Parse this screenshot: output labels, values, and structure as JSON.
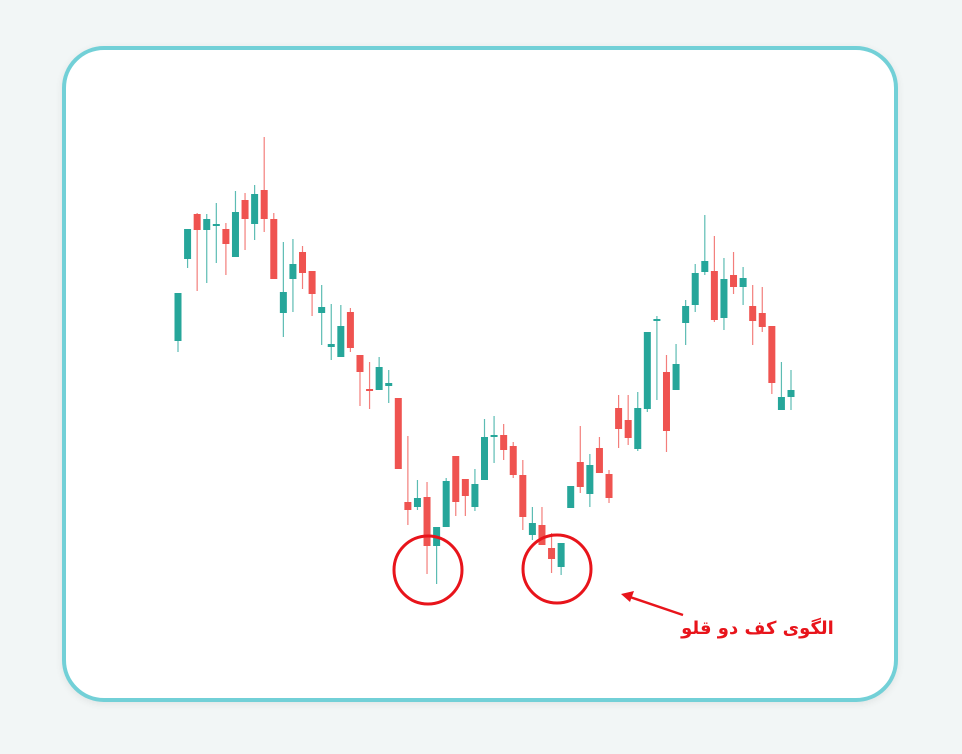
{
  "chart_data": {
    "type": "candlestick",
    "title": "",
    "xlabel": "",
    "ylabel": "",
    "axes_visible": false,
    "grid": false,
    "colors": {
      "up": "#26a69a",
      "down": "#ef5350",
      "annotation": "#e8141b",
      "frame": "#72d0d7"
    },
    "ylim": [
      0,
      48
    ],
    "fields": [
      "open",
      "high",
      "low",
      "close"
    ],
    "candles": [
      [
        25.9,
        30.7,
        24.8,
        30.7
      ],
      [
        34.1,
        37.1,
        33.2,
        37.1
      ],
      [
        38.6,
        38.7,
        30.9,
        37.0
      ],
      [
        37.0,
        38.6,
        31.7,
        38.1
      ],
      [
        37.5,
        39.7,
        33.7,
        37.6
      ],
      [
        37.1,
        37.7,
        32.5,
        35.6
      ],
      [
        34.3,
        40.9,
        34.3,
        38.8
      ],
      [
        40.0,
        40.7,
        35.0,
        38.1
      ],
      [
        37.6,
        41.5,
        36.0,
        40.6
      ],
      [
        41.0,
        46.3,
        36.8,
        38.1
      ],
      [
        38.1,
        38.7,
        32.1,
        32.1
      ],
      [
        28.7,
        35.8,
        26.3,
        30.8
      ],
      [
        32.1,
        36.1,
        28.8,
        33.6
      ],
      [
        34.8,
        35.4,
        31.1,
        32.7
      ],
      [
        32.9,
        32.9,
        28.4,
        30.6
      ],
      [
        28.7,
        31.5,
        25.5,
        29.3
      ],
      [
        25.3,
        29.6,
        24.0,
        25.6
      ],
      [
        24.3,
        29.5,
        24.3,
        27.4
      ],
      [
        28.8,
        29.2,
        24.8,
        25.2
      ],
      [
        24.5,
        24.5,
        19.4,
        22.8
      ],
      [
        21.1,
        23.8,
        19.1,
        21.0
      ],
      [
        21.0,
        24.3,
        21.0,
        23.3
      ],
      [
        21.4,
        23.0,
        19.7,
        21.7
      ],
      [
        20.2,
        20.2,
        13.1,
        13.1
      ],
      [
        9.8,
        16.4,
        7.5,
        9.0
      ],
      [
        9.3,
        12.0,
        9.0,
        10.2
      ],
      [
        10.3,
        11.8,
        2.6,
        5.4
      ],
      [
        5.4,
        7.3,
        1.6,
        7.3
      ],
      [
        7.3,
        12.2,
        7.3,
        11.9
      ],
      [
        14.4,
        14.4,
        8.4,
        9.8
      ],
      [
        12.1,
        12.1,
        8.4,
        10.4
      ],
      [
        9.3,
        13.1,
        8.9,
        11.6
      ],
      [
        12.0,
        18.1,
        12.0,
        16.3
      ],
      [
        16.3,
        18.4,
        13.7,
        16.5
      ],
      [
        16.5,
        17.6,
        14.0,
        15.0
      ],
      [
        15.4,
        15.8,
        12.2,
        12.5
      ],
      [
        12.5,
        14.0,
        7.0,
        8.3
      ],
      [
        6.5,
        9.3,
        6.0,
        7.7
      ],
      [
        7.5,
        9.3,
        5.5,
        5.5
      ],
      [
        5.2,
        6.7,
        2.7,
        4.1
      ],
      [
        3.3,
        5.7,
        2.5,
        5.7
      ],
      [
        9.2,
        11.4,
        9.2,
        11.4
      ],
      [
        13.8,
        17.4,
        10.7,
        11.3
      ],
      [
        10.6,
        14.6,
        9.3,
        13.5
      ],
      [
        15.2,
        16.3,
        12.7,
        12.7
      ],
      [
        12.6,
        13.0,
        9.7,
        10.2
      ],
      [
        19.2,
        20.5,
        15.2,
        17.1
      ],
      [
        18.0,
        20.5,
        15.5,
        16.2
      ],
      [
        15.1,
        20.8,
        14.9,
        19.2
      ],
      [
        19.1,
        26.8,
        18.8,
        26.8
      ],
      [
        28.0,
        28.4,
        20.0,
        28.1
      ],
      [
        22.8,
        24.5,
        14.8,
        16.9
      ],
      [
        21.0,
        25.6,
        21.0,
        23.6
      ],
      [
        27.7,
        30.0,
        25.5,
        29.4
      ],
      [
        29.5,
        33.6,
        28.8,
        32.7
      ],
      [
        32.8,
        38.5,
        32.5,
        33.9
      ],
      [
        32.9,
        36.4,
        27.8,
        28.0
      ],
      [
        28.2,
        34.2,
        27.0,
        32.1
      ],
      [
        32.5,
        34.8,
        30.6,
        31.3
      ],
      [
        31.3,
        33.3,
        29.5,
        32.2
      ],
      [
        29.4,
        31.5,
        25.5,
        27.9
      ],
      [
        28.7,
        31.3,
        26.8,
        27.3
      ],
      [
        27.4,
        27.4,
        20.6,
        21.7
      ],
      [
        19.0,
        23.8,
        19.0,
        20.3
      ],
      [
        20.3,
        23.0,
        19.0,
        21.0
      ]
    ],
    "annotations": {
      "highlighted_candles": [
        27,
        41
      ],
      "label": "الگوی کف دو قلو"
    }
  }
}
